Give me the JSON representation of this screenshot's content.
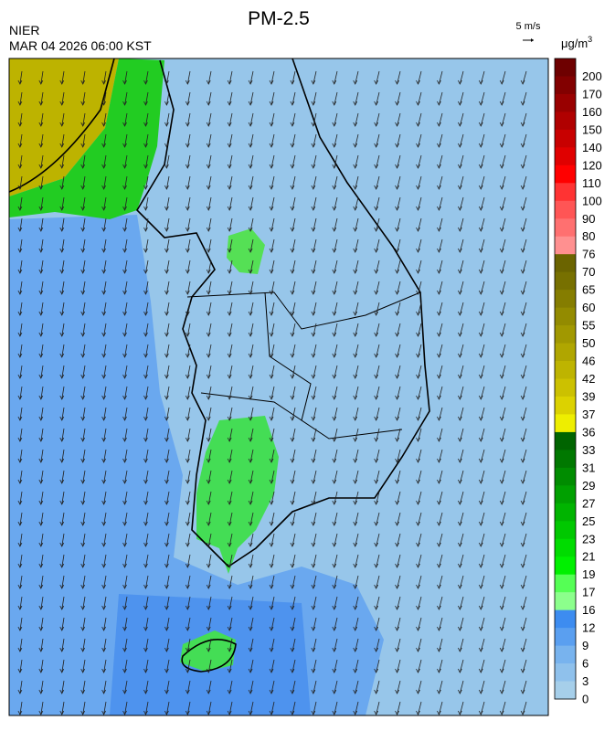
{
  "header": {
    "title": "PM-2.5",
    "agency": "NIER",
    "datetime": "MAR 04 2026 06:00 KST",
    "wind_scale": "5 m/s"
  },
  "colorbar": {
    "unit": "μg/m",
    "unit_sup": "3",
    "ticks": [
      200,
      170,
      160,
      150,
      140,
      120,
      110,
      100,
      90,
      80,
      76,
      70,
      65,
      60,
      55,
      50,
      46,
      42,
      39,
      37,
      36,
      33,
      31,
      29,
      27,
      25,
      23,
      21,
      19,
      17,
      16,
      12,
      9,
      6,
      3,
      0
    ],
    "colors": [
      "#6e0000",
      "#820000",
      "#990000",
      "#b00000",
      "#c80000",
      "#e00000",
      "#ff0000",
      "#ff3333",
      "#ff5555",
      "#ff7070",
      "#ff9090",
      "#6b6400",
      "#777000",
      "#857d00",
      "#938b00",
      "#a19800",
      "#b0a600",
      "#beb400",
      "#ccc100",
      "#dcd200",
      "#eeee00",
      "#006400",
      "#007800",
      "#008c00",
      "#00a000",
      "#00b400",
      "#00c800",
      "#00dc00",
      "#00f000",
      "#55ff55",
      "#8cff8c",
      "#3d8cf0",
      "#5a9ff0",
      "#78b3ee",
      "#8fc1ec",
      "#a6cfea"
    ]
  }
}
